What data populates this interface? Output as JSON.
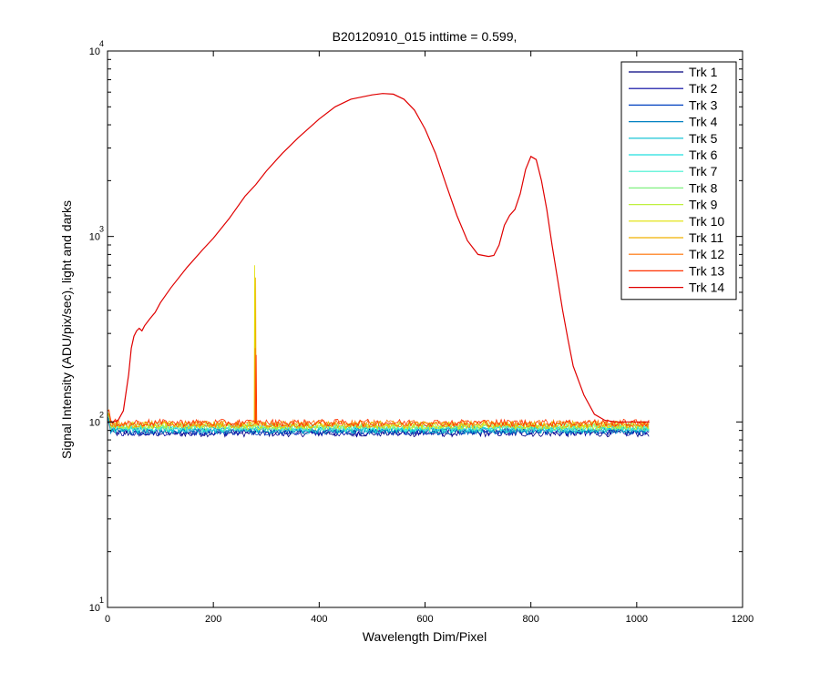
{
  "chart_data": {
    "type": "line",
    "title": "B20120910_015 inttime = 0.599,",
    "xlabel": "Wavelength Dim/Pixel",
    "ylabel": "Signal Intensity (ADU/pix/sec), light and darks",
    "xlim": [
      0,
      1200
    ],
    "ylim": [
      10,
      10000
    ],
    "yscale": "log",
    "grid": false,
    "legend_position": "top-right",
    "x_ticks": [
      0,
      200,
      400,
      600,
      800,
      1000,
      1200
    ],
    "x_tick_labels": [
      "0",
      "200",
      "400",
      "600",
      "800",
      "1000",
      "1200"
    ],
    "y_ticks": [
      {
        "value": 10,
        "base": "10",
        "exp": "1"
      },
      {
        "value": 100,
        "base": "10",
        "exp": "2"
      },
      {
        "value": 1000,
        "base": "10",
        "exp": "3"
      },
      {
        "value": 10000,
        "base": "10",
        "exp": "4"
      }
    ],
    "series": [
      {
        "name": "Trk 1",
        "color": "#00007F",
        "dark_level": 87
      },
      {
        "name": "Trk 2",
        "color": "#00009F",
        "dark_level": 88
      },
      {
        "name": "Trk 3",
        "color": "#0040BF",
        "dark_level": 89
      },
      {
        "name": "Trk 4",
        "color": "#0080C0",
        "dark_level": 90
      },
      {
        "name": "Trk 5",
        "color": "#00BFD0",
        "dark_level": 91
      },
      {
        "name": "Trk 6",
        "color": "#20DFDF",
        "dark_level": 92
      },
      {
        "name": "Trk 7",
        "color": "#40F0D0",
        "dark_level": 93
      },
      {
        "name": "Trk 8",
        "color": "#80F080",
        "dark_level": 94
      },
      {
        "name": "Trk 9",
        "color": "#BFF040",
        "dark_level": 95
      },
      {
        "name": "Trk 10",
        "color": "#E0E000",
        "dark_level": 96,
        "spike": {
          "x": 278,
          "y": 700
        }
      },
      {
        "name": "Trk 11",
        "color": "#F0B000",
        "dark_level": 97,
        "spike": {
          "x": 280,
          "y": 600
        }
      },
      {
        "name": "Trk 12",
        "color": "#FF7000",
        "dark_level": 98,
        "spike": {
          "x": 279,
          "y": 250
        }
      },
      {
        "name": "Trk 13",
        "color": "#FF3000",
        "dark_level": 99,
        "spike": {
          "x": 281,
          "y": 230
        }
      },
      {
        "name": "Trk 14",
        "color": "#E00000",
        "points": [
          [
            0,
            100
          ],
          [
            10,
            100
          ],
          [
            20,
            102
          ],
          [
            30,
            115
          ],
          [
            40,
            180
          ],
          [
            45,
            250
          ],
          [
            50,
            290
          ],
          [
            55,
            310
          ],
          [
            60,
            320
          ],
          [
            65,
            310
          ],
          [
            70,
            330
          ],
          [
            80,
            360
          ],
          [
            90,
            390
          ],
          [
            100,
            440
          ],
          [
            120,
            530
          ],
          [
            150,
            680
          ],
          [
            180,
            850
          ],
          [
            200,
            980
          ],
          [
            230,
            1250
          ],
          [
            260,
            1650
          ],
          [
            280,
            1900
          ],
          [
            300,
            2250
          ],
          [
            330,
            2800
          ],
          [
            360,
            3400
          ],
          [
            400,
            4300
          ],
          [
            430,
            5000
          ],
          [
            460,
            5500
          ],
          [
            500,
            5800
          ],
          [
            520,
            5900
          ],
          [
            540,
            5850
          ],
          [
            560,
            5500
          ],
          [
            580,
            4800
          ],
          [
            600,
            3800
          ],
          [
            620,
            2800
          ],
          [
            640,
            1900
          ],
          [
            660,
            1300
          ],
          [
            680,
            950
          ],
          [
            700,
            800
          ],
          [
            720,
            780
          ],
          [
            730,
            790
          ],
          [
            740,
            900
          ],
          [
            750,
            1150
          ],
          [
            760,
            1300
          ],
          [
            770,
            1400
          ],
          [
            780,
            1700
          ],
          [
            790,
            2300
          ],
          [
            800,
            2700
          ],
          [
            810,
            2600
          ],
          [
            820,
            2000
          ],
          [
            830,
            1400
          ],
          [
            840,
            900
          ],
          [
            850,
            600
          ],
          [
            860,
            400
          ],
          [
            870,
            280
          ],
          [
            880,
            200
          ],
          [
            900,
            140
          ],
          [
            920,
            110
          ],
          [
            940,
            102
          ],
          [
            960,
            100
          ],
          [
            980,
            100
          ],
          [
            1000,
            100
          ],
          [
            1024,
            100
          ]
        ]
      }
    ]
  }
}
